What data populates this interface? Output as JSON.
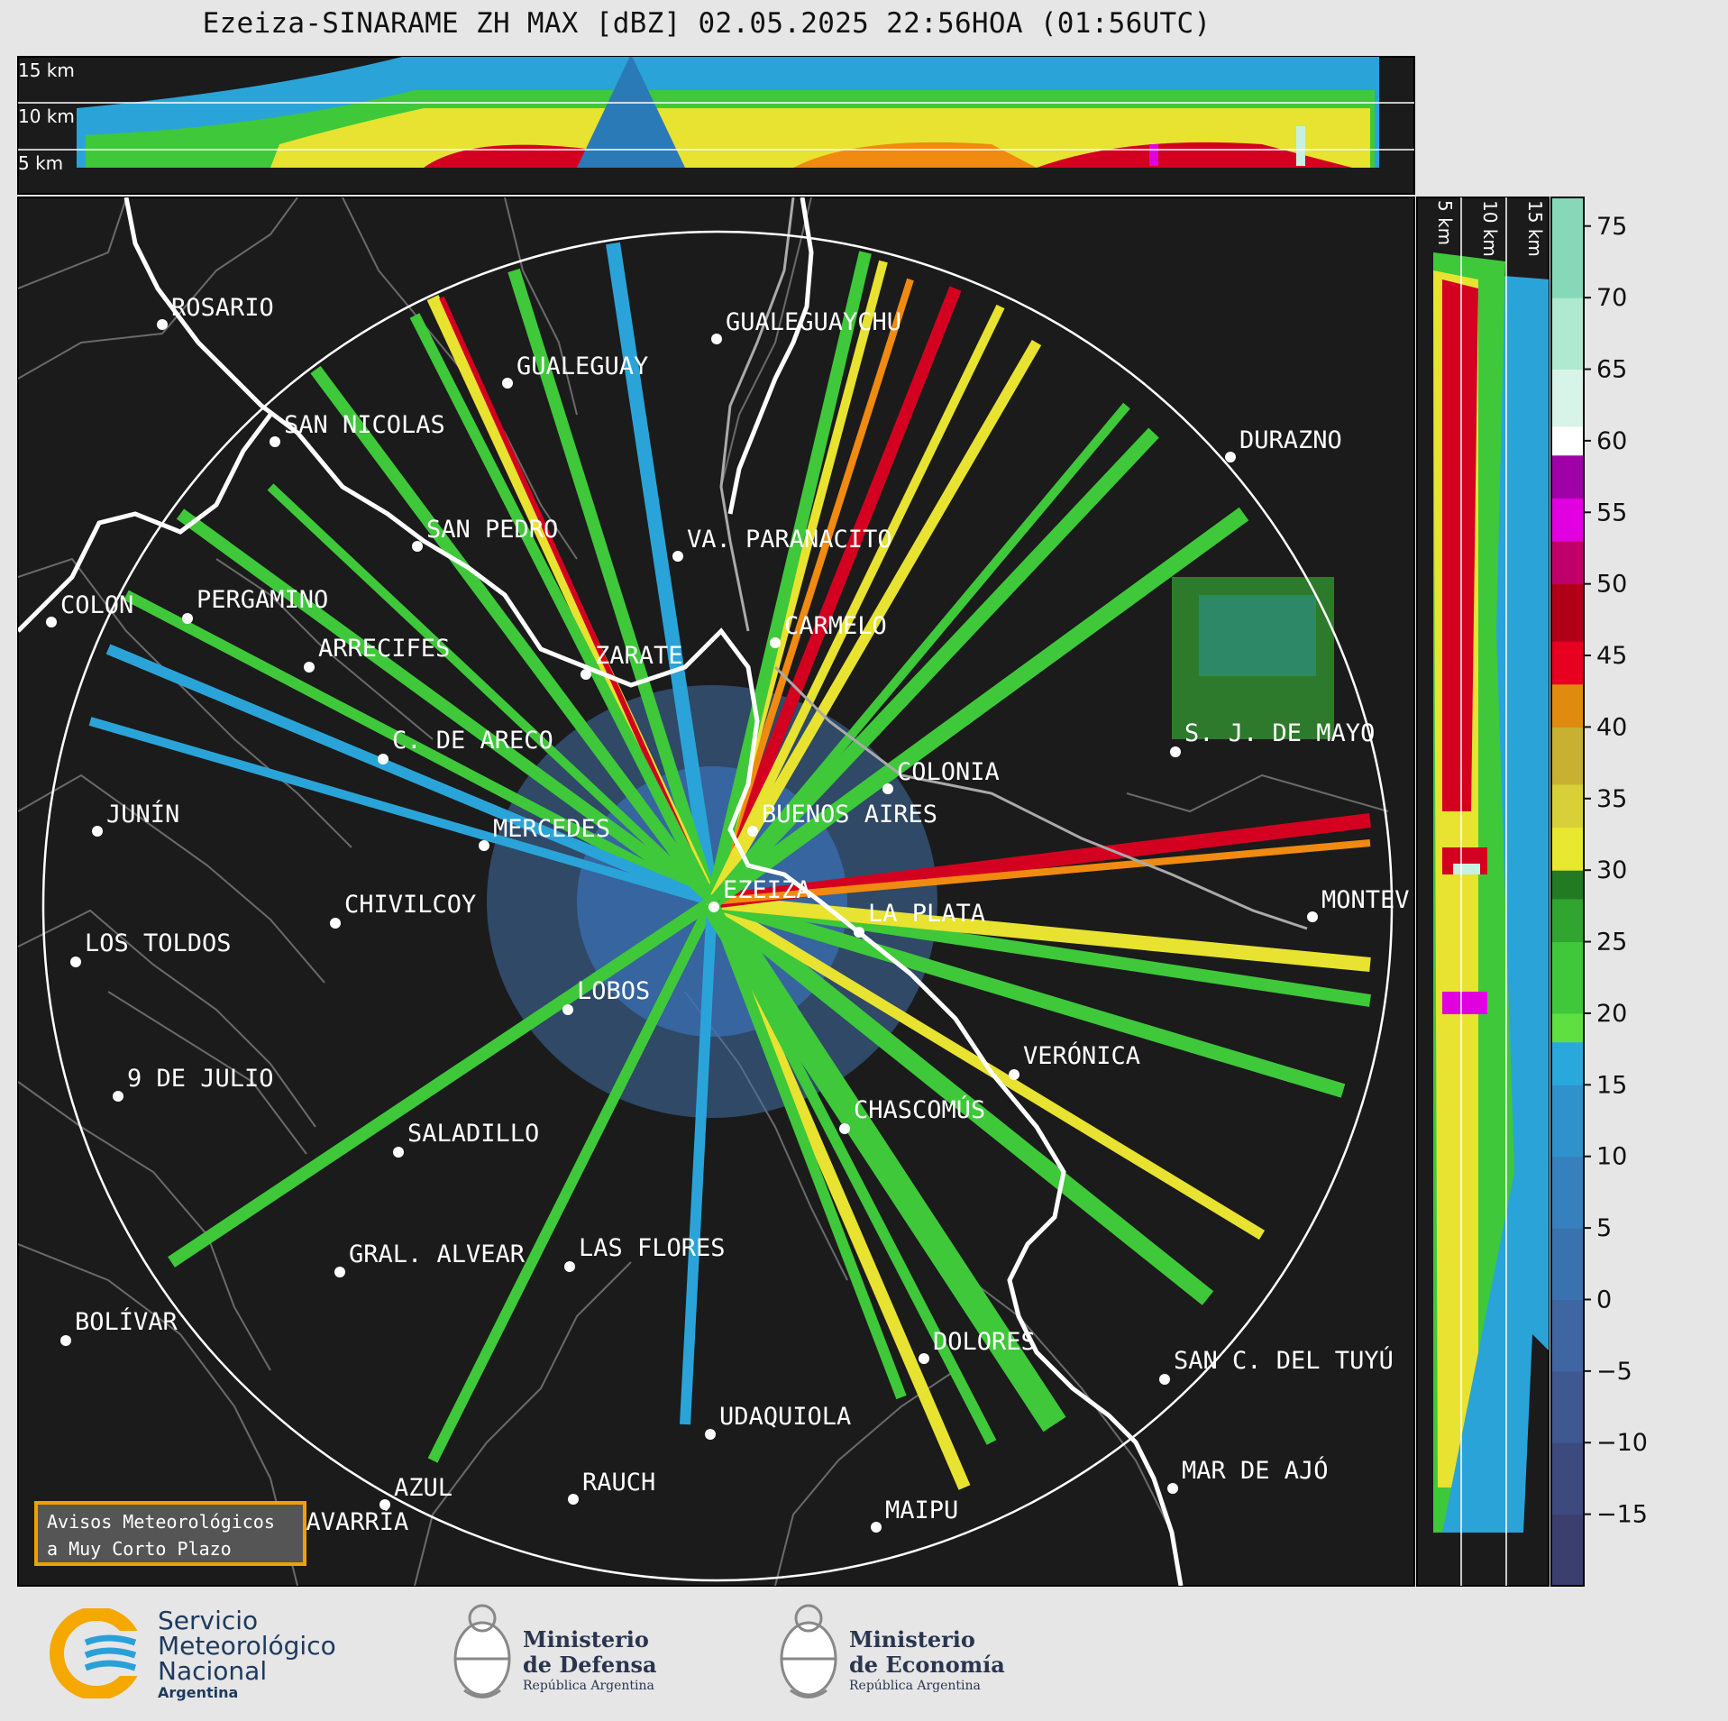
{
  "title": "Ezeiza-SINARAME ZH MAX [dBZ] 02.05.2025 22:56HOA (01:56UTC)",
  "height_labels_top": [
    "15 km",
    "10 km",
    "5 km"
  ],
  "height_labels_right": [
    "5 km",
    "10 km",
    "15 km"
  ],
  "colorbar": {
    "ticks": [
      "75",
      "70",
      "65",
      "60",
      "55",
      "50",
      "45",
      "40",
      "35",
      "30",
      "25",
      "20",
      "15",
      "10",
      "5",
      "0",
      "−5",
      "−10",
      "−15"
    ],
    "range": [
      -20,
      77
    ]
  },
  "cities": [
    {
      "name": "ROSARIO"
    },
    {
      "name": "GUALEGUAYCHU"
    },
    {
      "name": "GUALEGUAY"
    },
    {
      "name": "SAN NICOLAS"
    },
    {
      "name": "DURAZNO"
    },
    {
      "name": "SAN PEDRO"
    },
    {
      "name": "VA. PARANACITO"
    },
    {
      "name": "COLON"
    },
    {
      "name": "PERGAMINO"
    },
    {
      "name": "CARMELO"
    },
    {
      "name": "ARRECIFES"
    },
    {
      "name": "ZARATE"
    },
    {
      "name": "S. J. DE MAYO"
    },
    {
      "name": "C. DE ARECO"
    },
    {
      "name": "COLONIA"
    },
    {
      "name": "BUENOS AIRES"
    },
    {
      "name": "JUNÍN"
    },
    {
      "name": "MERCEDES"
    },
    {
      "name": "EZEIZA"
    },
    {
      "name": "MONTEV"
    },
    {
      "name": "LA PLATA"
    },
    {
      "name": "CHIVILCOY"
    },
    {
      "name": "LOS TOLDOS"
    },
    {
      "name": "LOBOS"
    },
    {
      "name": "VERÓNICA"
    },
    {
      "name": "9 DE JULIO"
    },
    {
      "name": "CHASCOMÚS"
    },
    {
      "name": "SALADILLO"
    },
    {
      "name": "GRAL. ALVEAR"
    },
    {
      "name": "LAS FLORES"
    },
    {
      "name": "BOLÍVAR"
    },
    {
      "name": "DOLORES"
    },
    {
      "name": "SAN C. DEL TUYÚ"
    },
    {
      "name": "UDAQUIOLA"
    },
    {
      "name": "MAR DE AJÓ"
    },
    {
      "name": "AZUL"
    },
    {
      "name": "RAUCH"
    },
    {
      "name": "OLAVARRÍA"
    },
    {
      "name": "MAIPU"
    }
  ],
  "avisos": {
    "line1": "Avisos Meteorológicos",
    "line2": "a Muy Corto Plazo"
  },
  "logos": {
    "smn": {
      "line1": "Servicio",
      "line2": "Meteorológico",
      "line3": "Nacional",
      "line4": "Argentina"
    },
    "defensa": {
      "line1": "Ministerio",
      "line2": "de Defensa",
      "line3": "República Argentina"
    },
    "economia": {
      "line1": "Ministerio",
      "line2": "de Economía",
      "line3": "República Argentina"
    }
  },
  "colors": {
    "background": "#1b1b1b",
    "page": "#e6e6e6",
    "range_ring": "#ffffff",
    "avisos_border": "#f0a000"
  }
}
